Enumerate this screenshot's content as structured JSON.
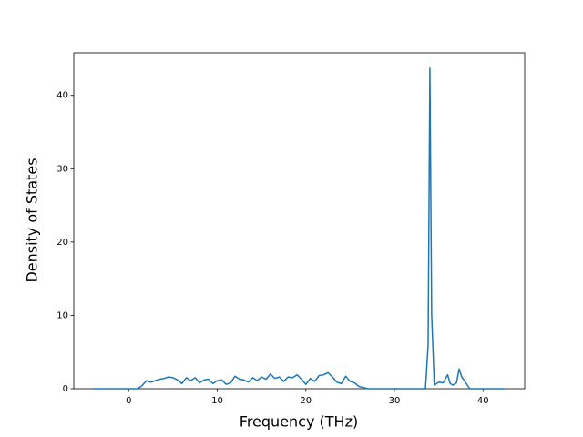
{
  "chart_data": {
    "type": "line",
    "x_label": "Frequency (THz)",
    "y_label": "Density of States",
    "x": [
      -4,
      1,
      1.5,
      2,
      2.5,
      3,
      3.5,
      4,
      4.5,
      5,
      5.5,
      6,
      6.5,
      7,
      7.5,
      8,
      8.5,
      9,
      9.5,
      10,
      10.5,
      11,
      11.5,
      12,
      12.5,
      13,
      13.5,
      14,
      14.5,
      15,
      15.5,
      16,
      16.5,
      17,
      17.5,
      18,
      18.5,
      19,
      19.5,
      20,
      20.5,
      21,
      21.5,
      22,
      22.5,
      23,
      23.5,
      24,
      24.5,
      25,
      25.5,
      26,
      27,
      28,
      33.5,
      33.8,
      34,
      34.2,
      34.5,
      35,
      35.5,
      36,
      36.3,
      36.6,
      37,
      37.3,
      37.6,
      38,
      38.5,
      39,
      42.4
    ],
    "values": [
      0,
      0,
      0.4,
      1.1,
      0.9,
      1.1,
      1.3,
      1.4,
      1.6,
      1.5,
      1.2,
      0.7,
      1.5,
      1.1,
      1.5,
      0.8,
      1.2,
      1.3,
      0.7,
      1.1,
      1.2,
      0.6,
      0.8,
      1.7,
      1.3,
      1.2,
      0.9,
      1.5,
      1.1,
      1.6,
      1.3,
      2.0,
      1.4,
      1.6,
      1.0,
      1.6,
      1.5,
      1.9,
      1.3,
      0.6,
      1.4,
      1.0,
      1.8,
      1.9,
      2.2,
      1.6,
      0.9,
      0.7,
      1.7,
      1.0,
      0.8,
      0.3,
      0,
      0,
      0,
      6,
      43.7,
      10,
      0.5,
      0.9,
      0.8,
      1.9,
      0.7,
      0.5,
      0.8,
      2.7,
      1.6,
      0.9,
      0,
      0,
      0
    ],
    "color": "#1f77b4",
    "xlim": [
      -6.2,
      44.7
    ],
    "ylim": [
      0,
      45.8
    ],
    "xticks": [
      0,
      10,
      20,
      30,
      40
    ],
    "yticks": [
      0,
      10,
      20,
      30,
      40
    ],
    "grid": false
  }
}
